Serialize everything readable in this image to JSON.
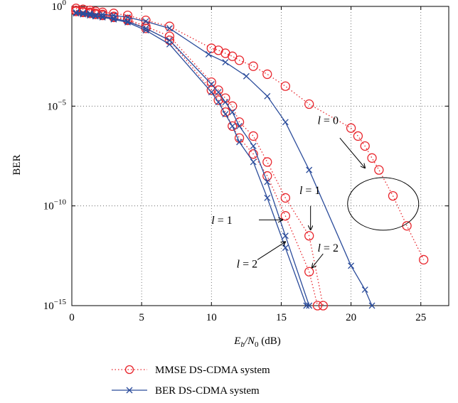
{
  "chart_data": {
    "type": "line",
    "xlabel": {
      "main": "E",
      "sub": "b",
      "slash": "/N",
      "sub2": "0",
      "unit": " (dB)"
    },
    "ylabel": "BER",
    "xlim": [
      0,
      27
    ],
    "ylim_log10": [
      -15,
      0
    ],
    "y_scale": "log",
    "grid": true,
    "x_ticks": [
      0,
      5,
      10,
      15,
      20,
      25
    ],
    "y_ticks": [
      {
        "exp": 0,
        "base": "10",
        "sup": "0"
      },
      {
        "exp": -5,
        "base": "10",
        "sup": "−5"
      },
      {
        "exp": -10,
        "base": "10",
        "sup": "−10"
      },
      {
        "exp": -15,
        "base": "10",
        "sup": "−15"
      }
    ],
    "colors": {
      "mmse": "#e8242b",
      "ber": "#2b4c9b"
    },
    "series": [
      {
        "name": "MMSE DS-CDMA system",
        "group": "mmse",
        "l": 0,
        "style": "dotted-circle",
        "x": [
          0.3,
          0.8,
          1.3,
          1.7,
          2.2,
          3.0,
          4.0,
          5.3,
          7.0,
          10.0,
          10.5,
          11.0,
          11.5,
          12.0,
          13.0,
          14.0,
          15.3,
          17.0,
          20.0,
          20.5,
          21.0,
          21.5,
          22.0,
          23.0,
          24.0,
          25.2
        ],
        "y": [
          -0.1,
          -0.15,
          -0.2,
          -0.25,
          -0.3,
          -0.35,
          -0.45,
          -0.7,
          -1.0,
          -2.1,
          -2.2,
          -2.35,
          -2.5,
          -2.7,
          -3.0,
          -3.4,
          -4.0,
          -4.9,
          -6.1,
          -6.5,
          -7.0,
          -7.6,
          -8.2,
          -9.5,
          -11.0,
          -12.7
        ]
      },
      {
        "name": "MMSE DS-CDMA system",
        "group": "mmse",
        "l": 1,
        "style": "dotted-circle",
        "x": [
          0.3,
          0.8,
          1.3,
          1.7,
          2.2,
          3.0,
          4.0,
          5.3,
          7.0,
          10.0,
          10.5,
          11.0,
          11.5,
          12.0,
          13.0,
          14.0,
          15.3,
          17.0,
          18.0
        ],
        "y": [
          -0.2,
          -0.25,
          -0.3,
          -0.35,
          -0.4,
          -0.5,
          -0.65,
          -1.0,
          -1.5,
          -3.8,
          -4.2,
          -4.6,
          -5.0,
          -5.8,
          -6.5,
          -7.8,
          -9.6,
          -11.5,
          -15.0
        ]
      },
      {
        "name": "MMSE DS-CDMA system",
        "group": "mmse",
        "l": 2,
        "style": "dotted-circle",
        "x": [
          0.3,
          0.8,
          1.3,
          1.7,
          2.2,
          3.0,
          4.0,
          5.3,
          7.0,
          10.0,
          10.5,
          11.0,
          11.5,
          12.0,
          13.0,
          14.0,
          15.3,
          17.0,
          17.6
        ],
        "y": [
          -0.25,
          -0.3,
          -0.35,
          -0.4,
          -0.45,
          -0.55,
          -0.7,
          -1.1,
          -1.7,
          -4.2,
          -4.7,
          -5.3,
          -6.0,
          -6.6,
          -7.4,
          -8.5,
          -10.5,
          -13.3,
          -15.0
        ]
      },
      {
        "name": "BER DS-CDMA system",
        "group": "ber",
        "l": 0,
        "style": "solid-x",
        "x": [
          0.3,
          0.8,
          1.3,
          2.2,
          3.0,
          4.0,
          5.3,
          7.0,
          9.8,
          11.0,
          12.5,
          14.0,
          15.3,
          17.0,
          20.0,
          21.0,
          21.5
        ],
        "y": [
          -0.3,
          -0.32,
          -0.35,
          -0.4,
          -0.45,
          -0.55,
          -0.75,
          -1.1,
          -2.4,
          -2.8,
          -3.5,
          -4.5,
          -5.8,
          -8.2,
          -13.0,
          -14.2,
          -15.0
        ]
      },
      {
        "name": "BER DS-CDMA system",
        "group": "ber",
        "l": 1,
        "style": "solid-x",
        "x": [
          0.3,
          0.8,
          1.3,
          1.7,
          2.2,
          3.0,
          4.0,
          5.3,
          7.0,
          10.0,
          10.5,
          11.0,
          11.5,
          12.0,
          13.0,
          14.0,
          15.3,
          17.0
        ],
        "y": [
          -0.3,
          -0.35,
          -0.4,
          -0.45,
          -0.5,
          -0.6,
          -0.75,
          -1.1,
          -1.7,
          -3.9,
          -4.3,
          -4.8,
          -5.3,
          -6.0,
          -7.0,
          -8.8,
          -11.5,
          -15.0
        ]
      },
      {
        "name": "BER DS-CDMA system",
        "group": "ber",
        "l": 2,
        "style": "solid-x",
        "x": [
          0.3,
          0.8,
          1.3,
          1.7,
          2.2,
          3.0,
          4.0,
          5.3,
          7.0,
          10.0,
          10.5,
          11.0,
          11.5,
          12.0,
          13.0,
          14.0,
          15.3,
          16.8
        ],
        "y": [
          -0.35,
          -0.4,
          -0.45,
          -0.5,
          -0.55,
          -0.65,
          -0.8,
          -1.2,
          -1.9,
          -4.3,
          -4.8,
          -5.4,
          -6.0,
          -6.8,
          -7.8,
          -9.6,
          -12.1,
          -15.0
        ]
      }
    ],
    "annotations": [
      {
        "id": "l0",
        "italic": "l",
        "text": " = 0",
        "tx": 17.6,
        "ty": -5.9
      },
      {
        "id": "l1a",
        "italic": "l",
        "text": " = 1",
        "tx": 16.3,
        "ty": -9.4
      },
      {
        "id": "l1b",
        "italic": "l",
        "text": " = 1",
        "tx": 10.0,
        "ty": -10.9
      },
      {
        "id": "l2a",
        "italic": "l",
        "text": " = 2",
        "tx": 17.6,
        "ty": -12.3
      },
      {
        "id": "l2b",
        "italic": "l",
        "text": " = 2",
        "tx": 11.8,
        "ty": -13.1
      }
    ],
    "legend": {
      "position": "bottom-left",
      "entries": [
        {
          "label": "MMSE DS-CDMA system",
          "group": "mmse"
        },
        {
          "label": "BER DS-CDMA system",
          "group": "ber"
        }
      ]
    }
  }
}
